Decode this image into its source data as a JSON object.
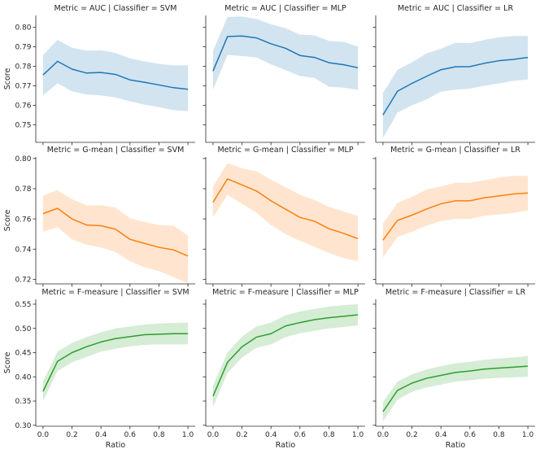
{
  "chart_data": {
    "type": "line",
    "x_label": "Ratio",
    "y_label": "Score",
    "x": [
      0.0,
      0.1,
      0.2,
      0.3,
      0.4,
      0.5,
      0.6,
      0.7,
      0.8,
      0.9,
      1.0
    ],
    "x_ticks": [
      "0.0",
      "0.2",
      "0.4",
      "0.6",
      "0.8",
      "1.0"
    ],
    "x_lim": [
      -0.05,
      1.05
    ],
    "rows": [
      {
        "metric": "AUC",
        "color": "#1f77b4",
        "y_lim": [
          0.741,
          0.806
        ],
        "y_ticks": [
          0.75,
          0.76,
          0.77,
          0.78,
          0.79,
          0.8
        ],
        "y_tick_labels": [
          "0.75",
          "0.76",
          "0.77",
          "0.78",
          "0.79",
          "0.80"
        ],
        "panels": [
          {
            "title": "Metric = AUC | Classifier = SVM",
            "mean": [
              0.7755,
              0.7825,
              0.7785,
              0.7765,
              0.7768,
              0.7758,
              0.773,
              0.7718,
              0.7704,
              0.769,
              0.7682
            ],
            "lower": [
              0.765,
              0.7712,
              0.7672,
              0.7655,
              0.765,
              0.764,
              0.762,
              0.7603,
              0.759,
              0.7575,
              0.757
            ],
            "upper": [
              0.7858,
              0.7935,
              0.7895,
              0.788,
              0.7882,
              0.7868,
              0.784,
              0.7825,
              0.7812,
              0.7805,
              0.7805
            ]
          },
          {
            "title": "Metric = AUC | Classifier = MLP",
            "mean": [
              0.7775,
              0.7952,
              0.7955,
              0.7945,
              0.7915,
              0.7892,
              0.7855,
              0.7845,
              0.7818,
              0.7808,
              0.7792
            ],
            "lower": [
              0.768,
              0.7858,
              0.7852,
              0.7845,
              0.781,
              0.778,
              0.775,
              0.774,
              0.7695,
              0.769,
              0.768
            ],
            "upper": [
              0.7878,
              0.8052,
              0.8055,
              0.8042,
              0.8015,
              0.7995,
              0.7962,
              0.7958,
              0.793,
              0.7925,
              0.79
            ]
          },
          {
            "title": "Metric = AUC | Classifier = LR",
            "mean": [
              0.755,
              0.7672,
              0.7712,
              0.7748,
              0.7782,
              0.7797,
              0.7798,
              0.7815,
              0.7828,
              0.7835,
              0.7845
            ],
            "lower": [
              0.7432,
              0.7562,
              0.76,
              0.763,
              0.767,
              0.768,
              0.7685,
              0.77,
              0.7712,
              0.7725,
              0.7732
            ],
            "upper": [
              0.7662,
              0.7782,
              0.782,
              0.7865,
              0.789,
              0.792,
              0.7918,
              0.7935,
              0.7948,
              0.7955,
              0.7955
            ]
          }
        ]
      },
      {
        "metric": "G-mean",
        "color": "#ff7f0e",
        "y_lim": [
          0.717,
          0.801
        ],
        "y_ticks": [
          0.72,
          0.74,
          0.76,
          0.78,
          0.8
        ],
        "y_tick_labels": [
          "0.72",
          "0.74",
          "0.76",
          "0.78",
          "0.80"
        ],
        "panels": [
          {
            "title": "Metric = G-mean | Classifier = SVM",
            "mean": [
              0.7635,
              0.767,
              0.76,
              0.756,
              0.7555,
              0.7532,
              0.7465,
              0.7438,
              0.7412,
              0.7395,
              0.7355
            ],
            "lower": [
              0.7515,
              0.7545,
              0.7465,
              0.743,
              0.741,
              0.738,
              0.732,
              0.728,
              0.7255,
              0.7215,
              0.7175
            ],
            "upper": [
              0.7755,
              0.779,
              0.773,
              0.769,
              0.769,
              0.7675,
              0.7605,
              0.758,
              0.756,
              0.7555,
              0.749
            ]
          },
          {
            "title": "Metric = G-mean | Classifier = MLP",
            "mean": [
              0.771,
              0.7865,
              0.7825,
              0.7785,
              0.772,
              0.7665,
              0.761,
              0.7585,
              0.7535,
              0.7505,
              0.747
            ],
            "lower": [
              0.761,
              0.776,
              0.77,
              0.764,
              0.756,
              0.75,
              0.7455,
              0.7415,
              0.7375,
              0.734,
              0.732
            ],
            "upper": [
              0.7815,
              0.797,
              0.7935,
              0.7915,
              0.786,
              0.781,
              0.776,
              0.7725,
              0.768,
              0.765,
              0.762
            ]
          },
          {
            "title": "Metric = G-mean | Classifier = LR",
            "mean": [
              0.746,
              0.759,
              0.7625,
              0.7665,
              0.77,
              0.772,
              0.772,
              0.774,
              0.7752,
              0.7765,
              0.7772
            ],
            "lower": [
              0.7345,
              0.748,
              0.7515,
              0.7555,
              0.7585,
              0.76,
              0.76,
              0.762,
              0.763,
              0.764,
              0.7655
            ],
            "upper": [
              0.757,
              0.7705,
              0.7745,
              0.7795,
              0.7815,
              0.784,
              0.784,
              0.7855,
              0.7875,
              0.7885,
              0.7885
            ]
          }
        ]
      },
      {
        "metric": "F-measure",
        "color": "#2ca02c",
        "y_lim": [
          0.298,
          0.56
        ],
        "y_ticks": [
          0.3,
          0.35,
          0.4,
          0.45,
          0.5,
          0.55
        ],
        "y_tick_labels": [
          "0.30",
          "0.35",
          "0.40",
          "0.45",
          "0.50",
          "0.55"
        ],
        "panels": [
          {
            "title": "Metric = F-measure | Classifier = SVM",
            "mean": [
              0.37,
              0.432,
              0.45,
              0.462,
              0.472,
              0.479,
              0.483,
              0.487,
              0.488,
              0.489,
              0.489
            ],
            "lower": [
              0.35,
              0.412,
              0.43,
              0.441,
              0.452,
              0.458,
              0.463,
              0.466,
              0.467,
              0.467,
              0.467
            ],
            "upper": [
              0.391,
              0.452,
              0.47,
              0.482,
              0.492,
              0.5,
              0.504,
              0.508,
              0.51,
              0.511,
              0.512
            ]
          },
          {
            "title": "Metric = F-measure | Classifier = MLP",
            "mean": [
              0.36,
              0.43,
              0.462,
              0.482,
              0.489,
              0.505,
              0.512,
              0.518,
              0.522,
              0.525,
              0.528
            ],
            "lower": [
              0.338,
              0.408,
              0.44,
              0.46,
              0.467,
              0.482,
              0.49,
              0.495,
              0.5,
              0.503,
              0.506
            ],
            "upper": [
              0.382,
              0.45,
              0.483,
              0.504,
              0.512,
              0.527,
              0.535,
              0.54,
              0.545,
              0.548,
              0.55
            ]
          },
          {
            "title": "Metric = F-measure | Classifier = LR",
            "mean": [
              0.328,
              0.372,
              0.387,
              0.397,
              0.403,
              0.409,
              0.412,
              0.416,
              0.418,
              0.42,
              0.422
            ],
            "lower": [
              0.308,
              0.353,
              0.369,
              0.378,
              0.384,
              0.39,
              0.393,
              0.396,
              0.398,
              0.399,
              0.4
            ],
            "upper": [
              0.348,
              0.39,
              0.405,
              0.415,
              0.422,
              0.428,
              0.431,
              0.435,
              0.438,
              0.44,
              0.443
            ]
          }
        ]
      }
    ]
  }
}
